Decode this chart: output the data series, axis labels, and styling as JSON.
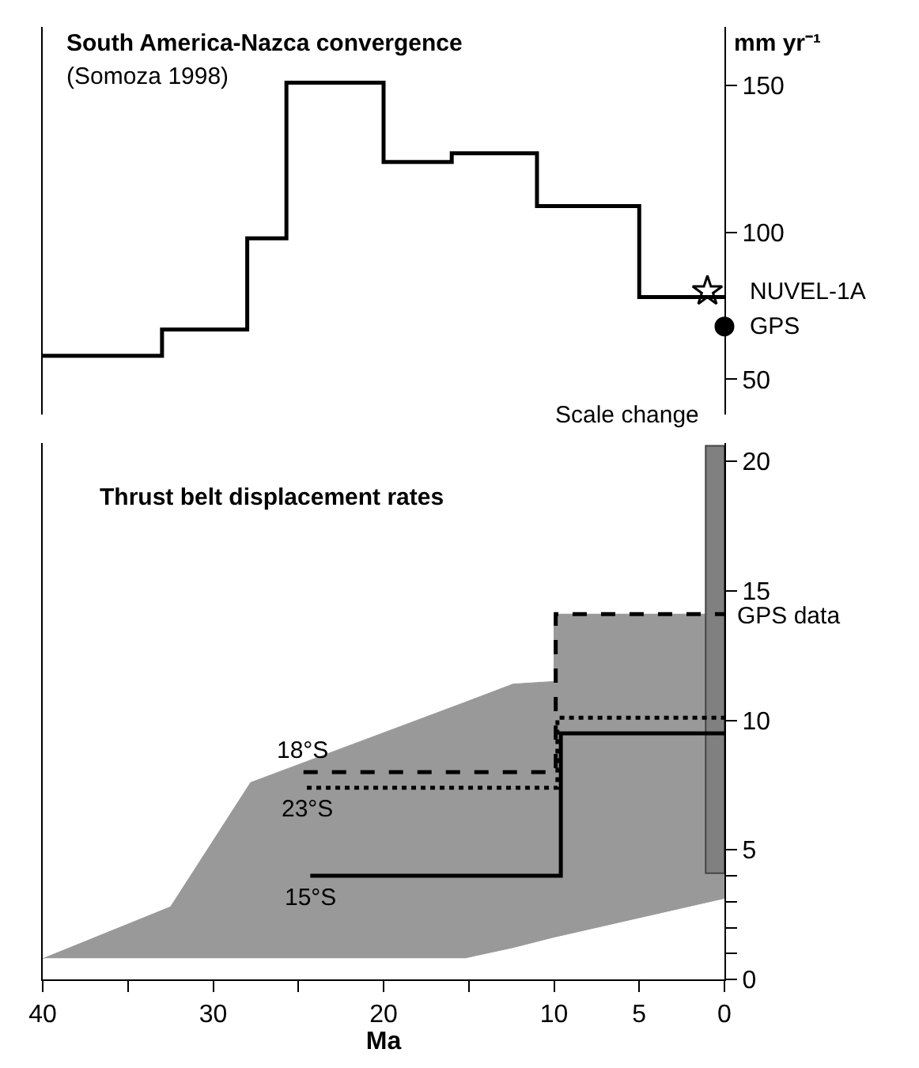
{
  "chart_data": [
    {
      "type": "step",
      "title": "South America-Nazca convergence",
      "subtitle": "(Somoza 1998)",
      "ylabel": "mm yr⁻¹",
      "xlim": [
        40,
        0
      ],
      "ylim": [
        38,
        170
      ],
      "yticks": [
        50,
        100,
        150
      ],
      "tick_labels": "y",
      "annotations": [
        "Scale change"
      ],
      "series": [
        {
          "color": "#000000",
          "x": [
            40,
            33,
            28,
            25.7,
            20,
            16,
            11,
            5,
            0
          ],
          "values": [
            58,
            67,
            98,
            151,
            124,
            127,
            109,
            78,
            78
          ],
          "line_style": "solid"
        },
        {
          "type": "scatter",
          "name": "NUVEL-1A",
          "color": "#000000",
          "x": [
            1
          ],
          "values": [
            80
          ],
          "marker": "star"
        },
        {
          "type": "scatter",
          "name": "GPS",
          "color": "#000000",
          "x": [
            0
          ],
          "values": [
            68
          ],
          "marker": "circle"
        }
      ]
    },
    {
      "type": "step",
      "stacked": true,
      "title": "Thrust belt displacement rates",
      "xlabel": "Ma",
      "xlim": [
        40,
        0
      ],
      "xticks": [
        40,
        {
          "value": 35,
          "label": null
        },
        30,
        {
          "value": 25,
          "label": null
        },
        20,
        {
          "value": 15,
          "label": null
        },
        10,
        5,
        0
      ],
      "ylim": [
        0,
        20.7
      ],
      "yticks": [
        0,
        {
          "value": 1,
          "label": null
        },
        {
          "value": 2,
          "label": null
        },
        {
          "value": 3,
          "label": null
        },
        {
          "value": 4,
          "label": null
        },
        5,
        10,
        15,
        20
      ],
      "series": [
        {
          "type": "area",
          "color": "#ffffff",
          "x": [
            40,
            32.5,
            27.8,
            15.2,
            12.4,
            10,
            10,
            0
          ],
          "values": [
            0.8,
            0.8,
            0.8,
            0.8,
            1.2,
            1.6,
            1.6,
            3.1
          ]
        },
        {
          "type": "area",
          "color": "#999999",
          "x": [
            40,
            32.5,
            27.8,
            15.2,
            12.4,
            10,
            10,
            0
          ],
          "values": [
            0.0,
            2.0,
            6.8,
            9.9,
            10.2,
            9.9,
            12.5,
            11.0
          ]
        },
        {
          "type": "bar",
          "name": "GPS data",
          "color": "#808080",
          "x": [
            0.55
          ],
          "base": [
            4.1
          ],
          "values": [
            16.5
          ]
        },
        {
          "name": "18°S",
          "color": "#000000",
          "x": [
            24.7,
            9.9,
            0
          ],
          "values": [
            8.0,
            14.1,
            14.1
          ],
          "line_style": "dashed"
        },
        {
          "name": "23°S",
          "color": "#000000",
          "x": [
            24.5,
            9.8,
            0
          ],
          "values": [
            7.4,
            10.1,
            10.1
          ],
          "line_style": "dotted"
        },
        {
          "name": "15°S",
          "color": "#000000",
          "x": [
            24.3,
            9.6,
            0
          ],
          "values": [
            4.0,
            9.5,
            9.5
          ],
          "line_style": "solid"
        }
      ]
    }
  ]
}
